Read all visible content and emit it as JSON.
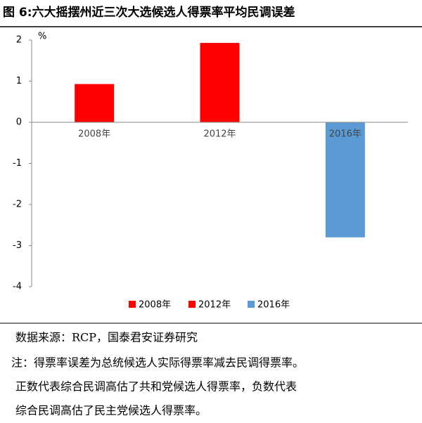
{
  "chart_data": {
    "type": "bar",
    "title": "图 6:六大摇摆州近三次大选候选人得票率平均民调误差",
    "y_unit": "%",
    "categories": [
      "2008年",
      "2012年",
      "2016年"
    ],
    "values": [
      0.93,
      1.93,
      -2.8
    ],
    "colors": [
      "#ff0000",
      "#ff0000",
      "#5b9bd5"
    ],
    "ylim": [
      -4,
      2
    ],
    "yticks": [
      -4,
      -3,
      -2,
      -1,
      0,
      1,
      2
    ],
    "legend": "bottom",
    "source": "数据来源：RCP，国泰君安证券研究",
    "notes": [
      "注：得票率误差为总统候选人实际得票率减去民调得票率。",
      "正数代表综合民调高估了共和党候选人得票率，负数代表",
      "综合民调高估了民主党候选人得票率。"
    ]
  }
}
